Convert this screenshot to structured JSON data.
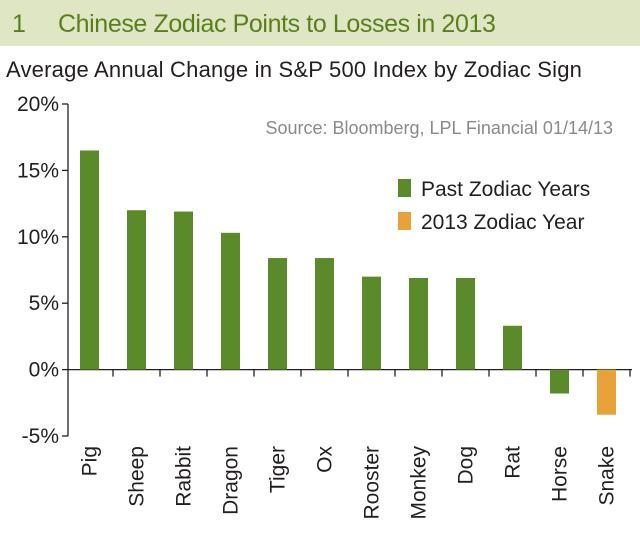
{
  "header": {
    "figure_number": "1",
    "title": "Chinese Zodiac Points to Losses in 2013"
  },
  "chart_data": {
    "type": "bar",
    "title": "Chinese Zodiac Points to Losses in 2013",
    "subtitle": "Average Annual Change in S&P 500 Index by Zodiac Sign",
    "source": "Source: Bloomberg, LPL Financial 01/14/13",
    "xlabel": "",
    "ylabel": "",
    "ylim": [
      -5,
      20
    ],
    "yticks": [
      20,
      15,
      10,
      5,
      0,
      -5
    ],
    "ytick_labels": [
      "20%",
      "15%",
      "10%",
      "5%",
      "0%",
      "-5%"
    ],
    "categories": [
      "Pig",
      "Sheep",
      "Rabbit",
      "Dragon",
      "Tiger",
      "Ox",
      "Rooster",
      "Monkey",
      "Dog",
      "Rat",
      "Horse",
      "Snake"
    ],
    "values": [
      16.5,
      12.0,
      11.9,
      10.3,
      8.4,
      8.4,
      7.0,
      6.9,
      6.9,
      3.3,
      -1.8,
      -3.4
    ],
    "series_index": [
      0,
      0,
      0,
      0,
      0,
      0,
      0,
      0,
      0,
      0,
      0,
      1
    ],
    "series": [
      {
        "name": "Past Zodiac Years",
        "color": "#5a8a2a"
      },
      {
        "name": "2013 Zodiac Year",
        "color": "#e8a23a"
      }
    ],
    "legend_position": "top-right",
    "grid": false
  }
}
